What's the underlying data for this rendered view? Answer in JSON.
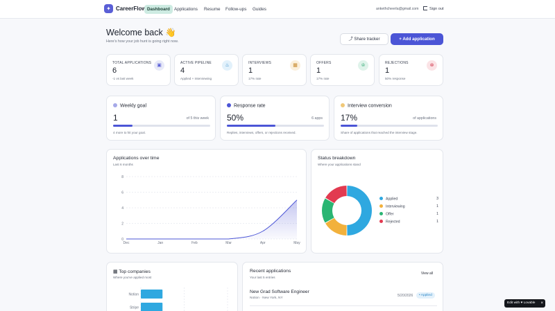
{
  "nav": {
    "brand": "CareerFlow",
    "links": [
      "Dashboard",
      "Applications",
      "Resume",
      "Follow-ups",
      "Guides"
    ],
    "active_index": 0,
    "email": "ankethcheerla@gmail.com",
    "signout": "Sign out"
  },
  "header": {
    "title": "Welcome back 👋",
    "subtitle": "Here's how your job hunt is going right now.",
    "share_label": "Share tracker",
    "add_label": "+ Add application"
  },
  "stats": [
    {
      "label": "TOTAL APPLICATIONS",
      "value": "6",
      "sub": "-1 vs last week",
      "icon": "briefcase-icon",
      "color": "#e8eaf8",
      "fg": "#5a5fd6"
    },
    {
      "label": "ACTIVE PIPELINE",
      "value": "4",
      "sub": "Applied + Interviewing",
      "icon": "flame-icon",
      "color": "#e2f1fb",
      "fg": "#2a86c7"
    },
    {
      "label": "INTERVIEWS",
      "value": "1",
      "sub": "17% rate",
      "icon": "calendar-icon",
      "color": "#fbf0dc",
      "fg": "#c7882a"
    },
    {
      "label": "OFFERS",
      "value": "1",
      "sub": "17% rate",
      "icon": "trophy-icon",
      "color": "#dff3ea",
      "fg": "#2aa66f"
    },
    {
      "label": "REJECTIONS",
      "value": "1",
      "sub": "50% response",
      "icon": "x-circle-icon",
      "color": "#fbe3e6",
      "fg": "#d23a4e"
    }
  ],
  "goals": [
    {
      "title": "Weekly goal",
      "value": "1",
      "right": "of 5 this week",
      "progress": 0.2,
      "note": "4 more to hit your goal.",
      "dot": "#a6a9e8"
    },
    {
      "title": "Response rate",
      "value": "50%",
      "right": "6 apps",
      "progress": 0.5,
      "note": "Replies, interviews, offers, or rejections received.",
      "dot": "#4b55d6"
    },
    {
      "title": "Interview conversion",
      "value": "17%",
      "right": "of applications",
      "progress": 0.17,
      "note": "Share of applications that reached the interview stage.",
      "dot": "#f0c878"
    }
  ],
  "apps_over_time": {
    "title": "Applications over time",
    "subtitle": "Last 6 months",
    "chart_data": {
      "type": "area",
      "categories": [
        "Dec",
        "Jan",
        "Feb",
        "Mar",
        "Apr",
        "May"
      ],
      "values": [
        0,
        0,
        0,
        0,
        1,
        5
      ],
      "y_ticks": [
        "0",
        "2",
        "4",
        "6",
        "8"
      ],
      "ylim": [
        0,
        8
      ],
      "grid": true
    }
  },
  "status": {
    "title": "Status breakdown",
    "subtitle": "Where your applications stand",
    "chart_data": {
      "type": "pie",
      "categories": [
        "Applied",
        "Interviewing",
        "Offer",
        "Rejected"
      ],
      "values": [
        3,
        1,
        1,
        1
      ],
      "colors": [
        "#2fa8e0",
        "#f2b13c",
        "#2ab573",
        "#e23a50"
      ],
      "legend": "right"
    }
  },
  "companies": {
    "title": "Top companies",
    "subtitle": "Where you've applied most",
    "chart_data": {
      "type": "bar",
      "categories": [
        "Notion",
        "Stripe"
      ],
      "values": [
        1,
        1
      ],
      "xlim": [
        0,
        2
      ]
    }
  },
  "recent": {
    "title": "Recent applications",
    "subtitle": "Your last 5 entries",
    "viewall": "View all",
    "items": [
      {
        "role": "New Grad Software Engineer",
        "company": "Notion · New York, NY",
        "date": "5/20/2026",
        "status": "• Applied"
      }
    ]
  },
  "lovable": {
    "label": "Edit with ♥ Lovable",
    "close": "×"
  }
}
